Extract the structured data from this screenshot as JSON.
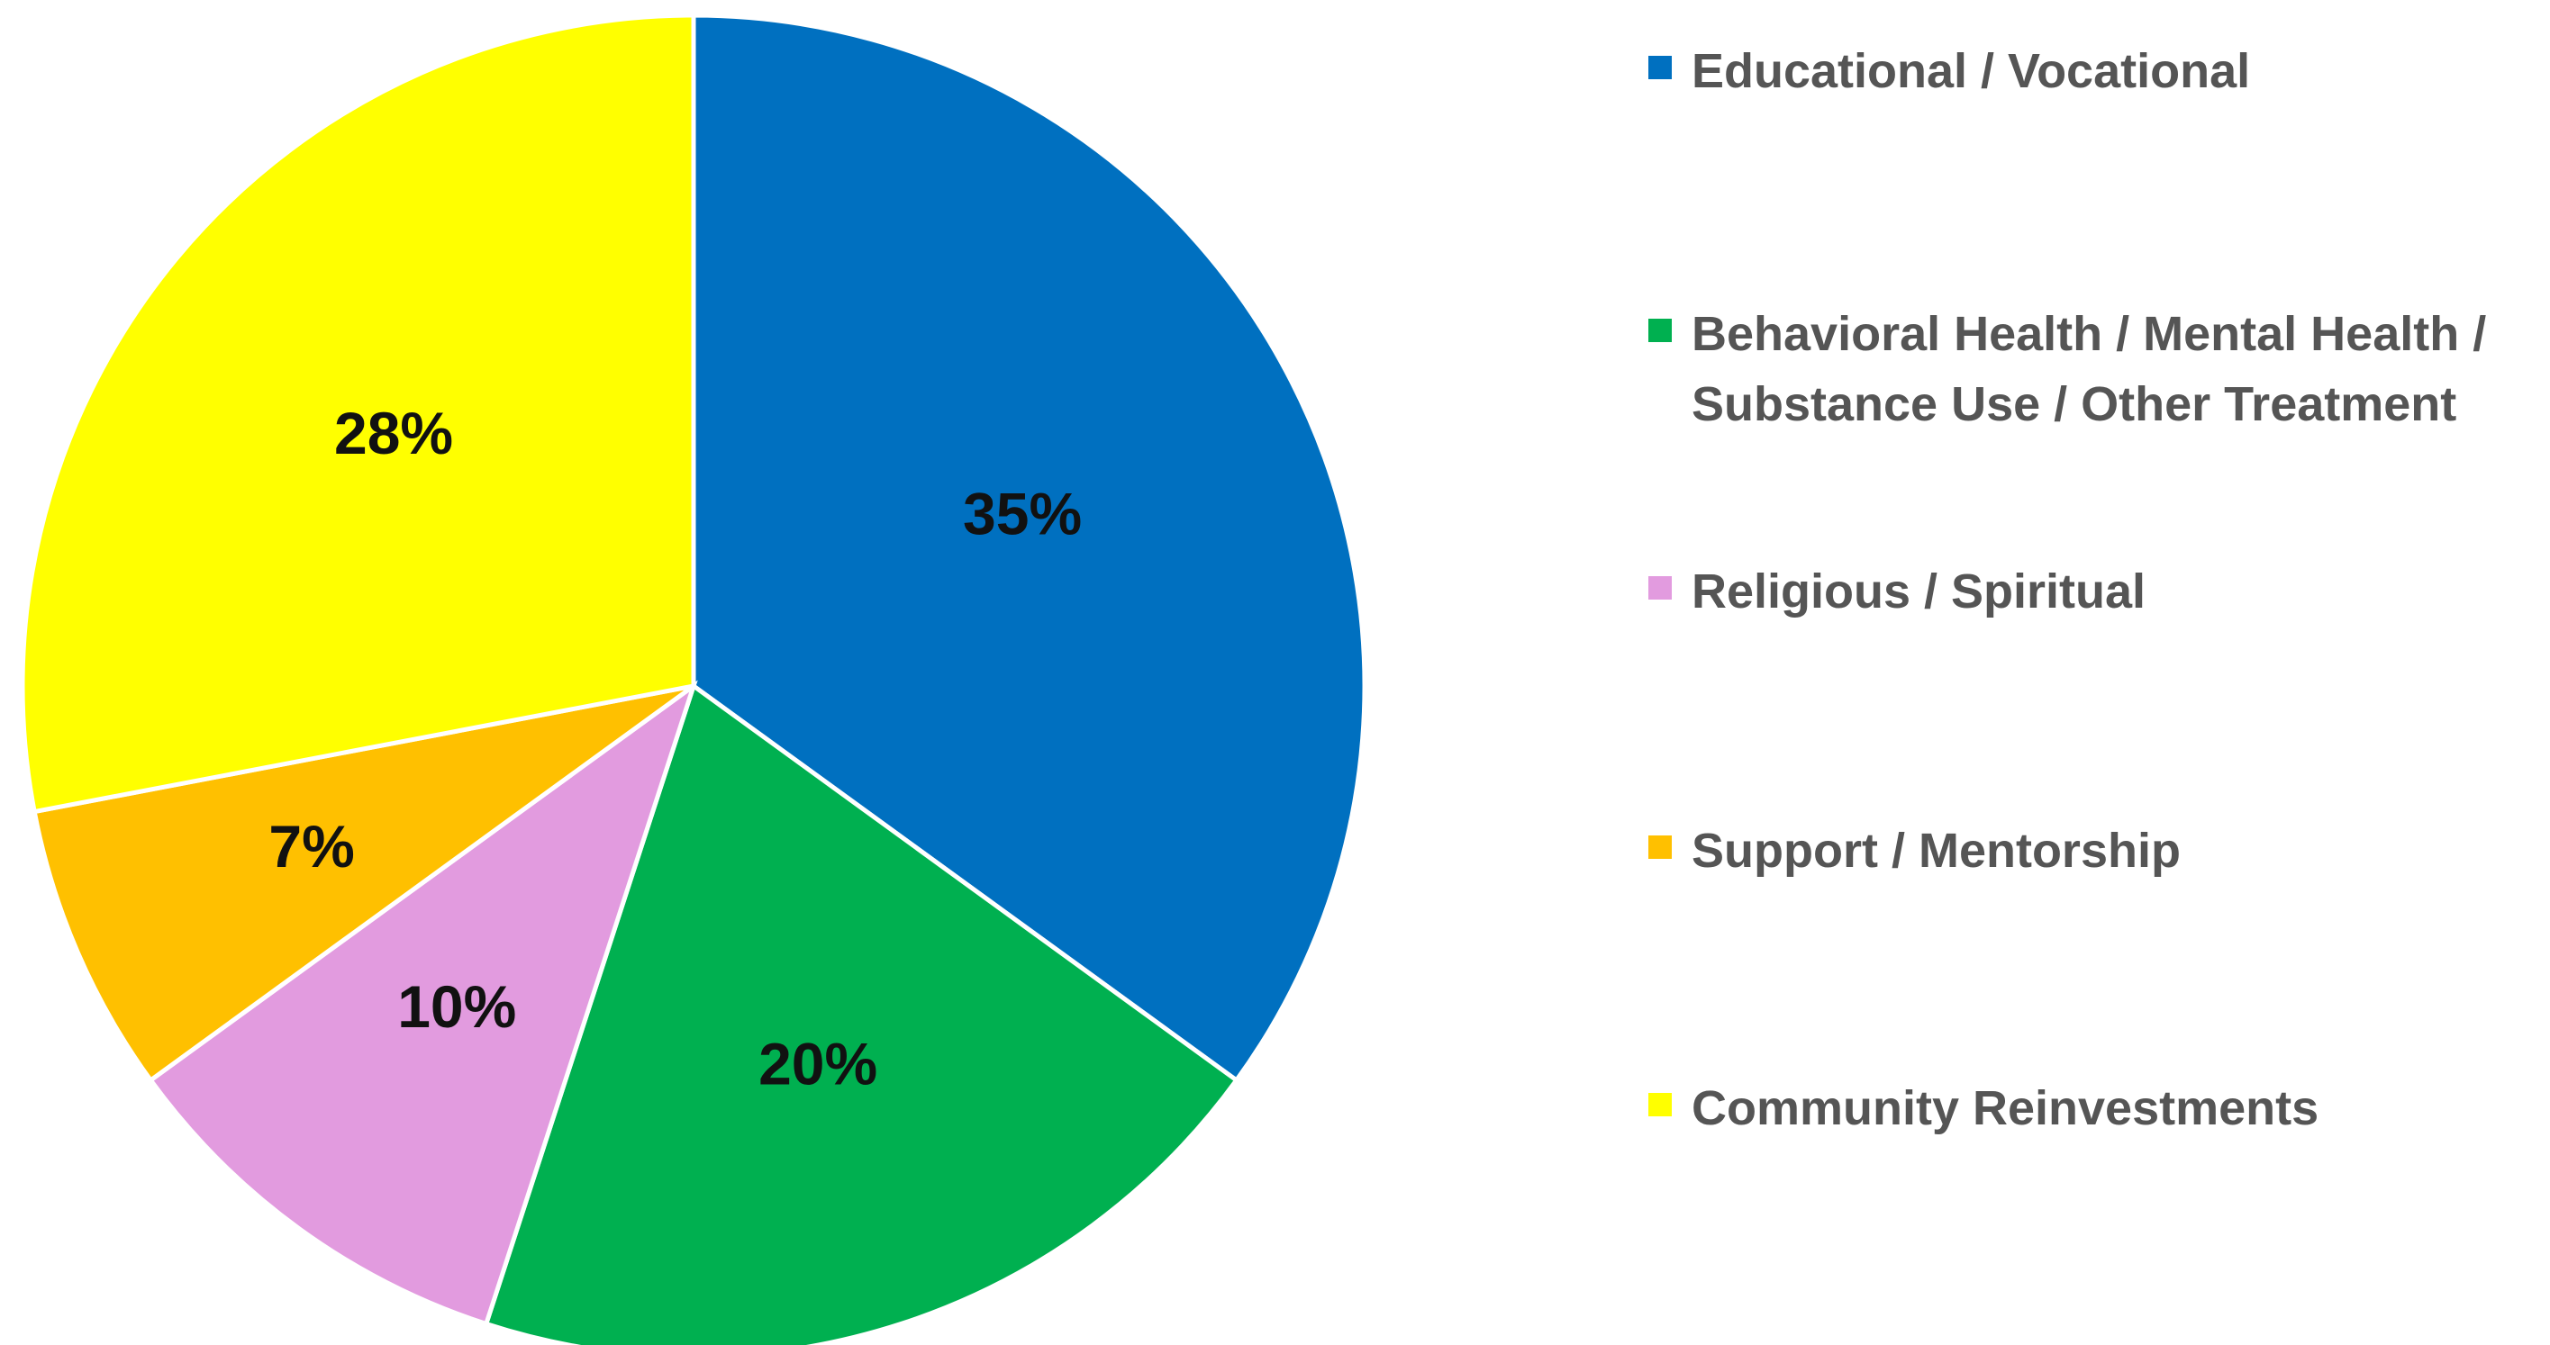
{
  "chart_data": {
    "type": "pie",
    "title": "",
    "categories": [
      "Educational / Vocational",
      "Behavioral Health / Mental Health / Substance Use / Other Treatment",
      "Religious / Spiritual",
      "Support / Mentorship",
      "Community Reinvestments"
    ],
    "values": [
      35,
      20,
      10,
      7,
      28
    ],
    "value_labels": [
      "35%",
      "20%",
      "10%",
      "7%",
      "28%"
    ],
    "colors": [
      "#0070C0",
      "#00B050",
      "#E29BDF",
      "#FFC000",
      "#FFFF00"
    ],
    "start_angle_deg": 0,
    "direction": "clockwise",
    "legend": {
      "placement": "right",
      "items": [
        {
          "label": "Educational / Vocational",
          "color": "#0070C0"
        },
        {
          "label": "Behavioral Health / Mental Health / Substance Use / Other Treatment",
          "color": "#00B050"
        },
        {
          "label": "Religious / Spiritual",
          "color": "#E29BDF"
        },
        {
          "label": "Support / Mentorship",
          "color": "#FFC000"
        },
        {
          "label": "Community Reinvestments",
          "color": "#FFFF00"
        }
      ]
    }
  }
}
